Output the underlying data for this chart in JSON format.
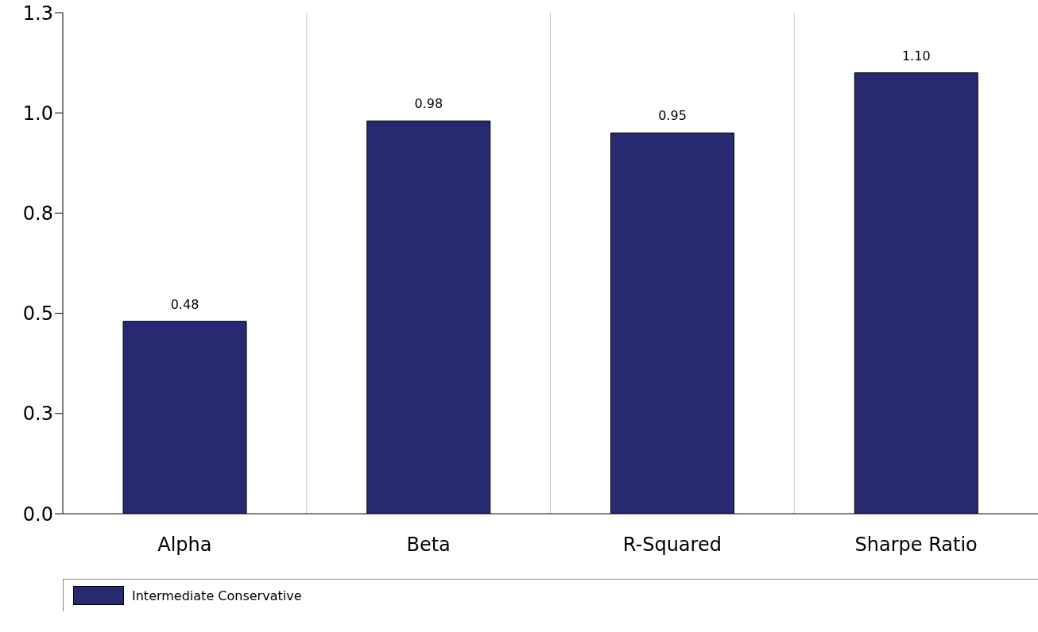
{
  "chart_data": {
    "type": "bar",
    "categories": [
      "Alpha",
      "Beta",
      "R-Squared",
      "Sharpe Ratio"
    ],
    "series": [
      {
        "name": "Intermediate Conservative",
        "color": "#272a70",
        "values": [
          0.48,
          0.98,
          0.95,
          1.1
        ],
        "value_labels": [
          "0.48",
          "0.98",
          "0.95",
          "1.10"
        ]
      }
    ],
    "ylim": [
      0,
      1.25
    ],
    "yticks": [
      {
        "value": 0,
        "label": "0.0"
      },
      {
        "value": 0.25,
        "label": "0.3"
      },
      {
        "value": 0.5,
        "label": "0.5"
      },
      {
        "value": 0.75,
        "label": "0.8"
      },
      {
        "value": 1,
        "label": "1.0"
      },
      {
        "value": 1.25,
        "label": "1.3"
      }
    ],
    "grid": "x",
    "legend": "bottom"
  }
}
